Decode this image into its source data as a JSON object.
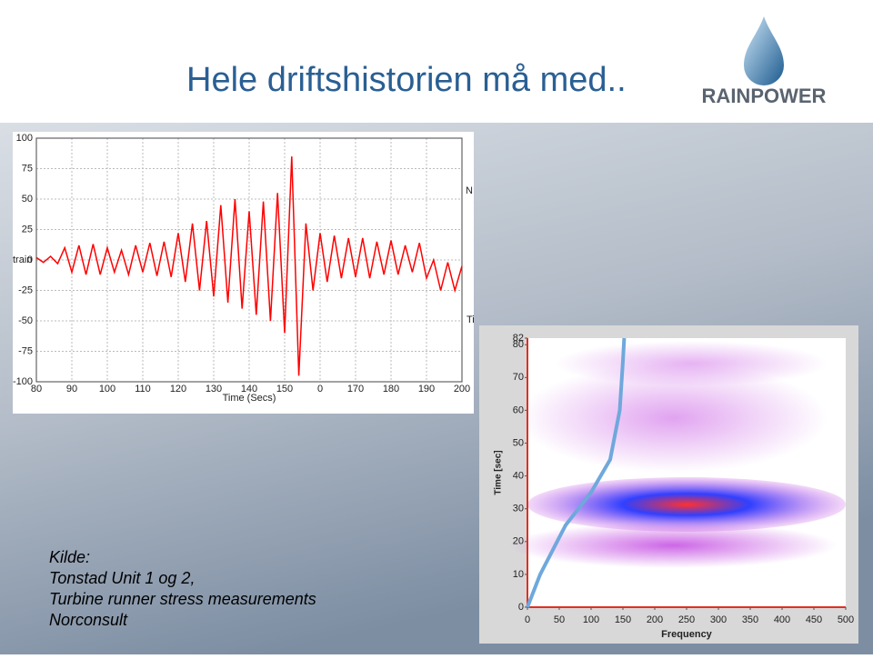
{
  "title": "Hele driftshistorien må med..",
  "logo": "RAINPOWER",
  "source": [
    "Kilde:",
    "Tonstad Unit 1 og 2,",
    "Turbine runner stress measurements",
    "Norconsult"
  ],
  "chart_data": [
    {
      "type": "line",
      "x": [
        80,
        82,
        84,
        86,
        88,
        90,
        92,
        94,
        96,
        98,
        100,
        102,
        104,
        106,
        108,
        110,
        112,
        114,
        116,
        118,
        120,
        122,
        124,
        126,
        128,
        130,
        132,
        134,
        136,
        138,
        140,
        142,
        144,
        146,
        148,
        150,
        152,
        154,
        156,
        158,
        160,
        162,
        164,
        166,
        168,
        170,
        172,
        174,
        176,
        178,
        180,
        182,
        184,
        186,
        188,
        190,
        192,
        194,
        196,
        198,
        200
      ],
      "series": [
        {
          "color": "#ff0000",
          "values": [
            2,
            -2,
            3,
            -3,
            10,
            -10,
            12,
            -12,
            13,
            -12,
            10,
            -10,
            8,
            -12,
            12,
            -10,
            14,
            -13,
            15,
            -14,
            22,
            -18,
            30,
            -25,
            32,
            -30,
            45,
            -35,
            50,
            -40,
            40,
            -45,
            48,
            -50,
            55,
            -60,
            85,
            -95,
            30,
            -25,
            22,
            -18,
            20,
            -15,
            18,
            -14,
            18,
            -15,
            15,
            -12,
            16,
            -12,
            12,
            -10,
            14,
            -15,
            0,
            -25,
            -2,
            -25,
            -5
          ]
        }
      ],
      "xlim": [
        80,
        200
      ],
      "ylim": [
        -100,
        100
      ],
      "xticks": [
        80,
        90,
        100,
        110,
        120,
        130,
        140,
        150,
        {
          "value": 160,
          "label": "0"
        },
        170,
        180,
        190,
        200
      ],
      "yticks": [
        100,
        75,
        50,
        25,
        0,
        -25,
        -50,
        -75,
        -100
      ],
      "xlabel": "Time (Secs)",
      "ylabel": "train",
      "annotations": [
        "N",
        "Ti"
      ],
      "grid": true
    },
    {
      "type": "line",
      "x": [
        0,
        20,
        60,
        100,
        130,
        145,
        150,
        152
      ],
      "series": [
        {
          "color": "#6fa8dc",
          "values": [
            0,
            10,
            25,
            35,
            45,
            60,
            75,
            82
          ]
        }
      ],
      "xlim": [
        0,
        500
      ],
      "ylim": [
        0,
        82
      ],
      "xticks": [
        0,
        50,
        100,
        150,
        200,
        250,
        300,
        350,
        400,
        450,
        500
      ],
      "yticks": [
        0,
        10,
        20,
        30,
        40,
        50,
        60,
        70,
        80,
        82
      ],
      "xlabel": "Frequency",
      "ylabel": "Time [sec]",
      "grid": false
    }
  ]
}
